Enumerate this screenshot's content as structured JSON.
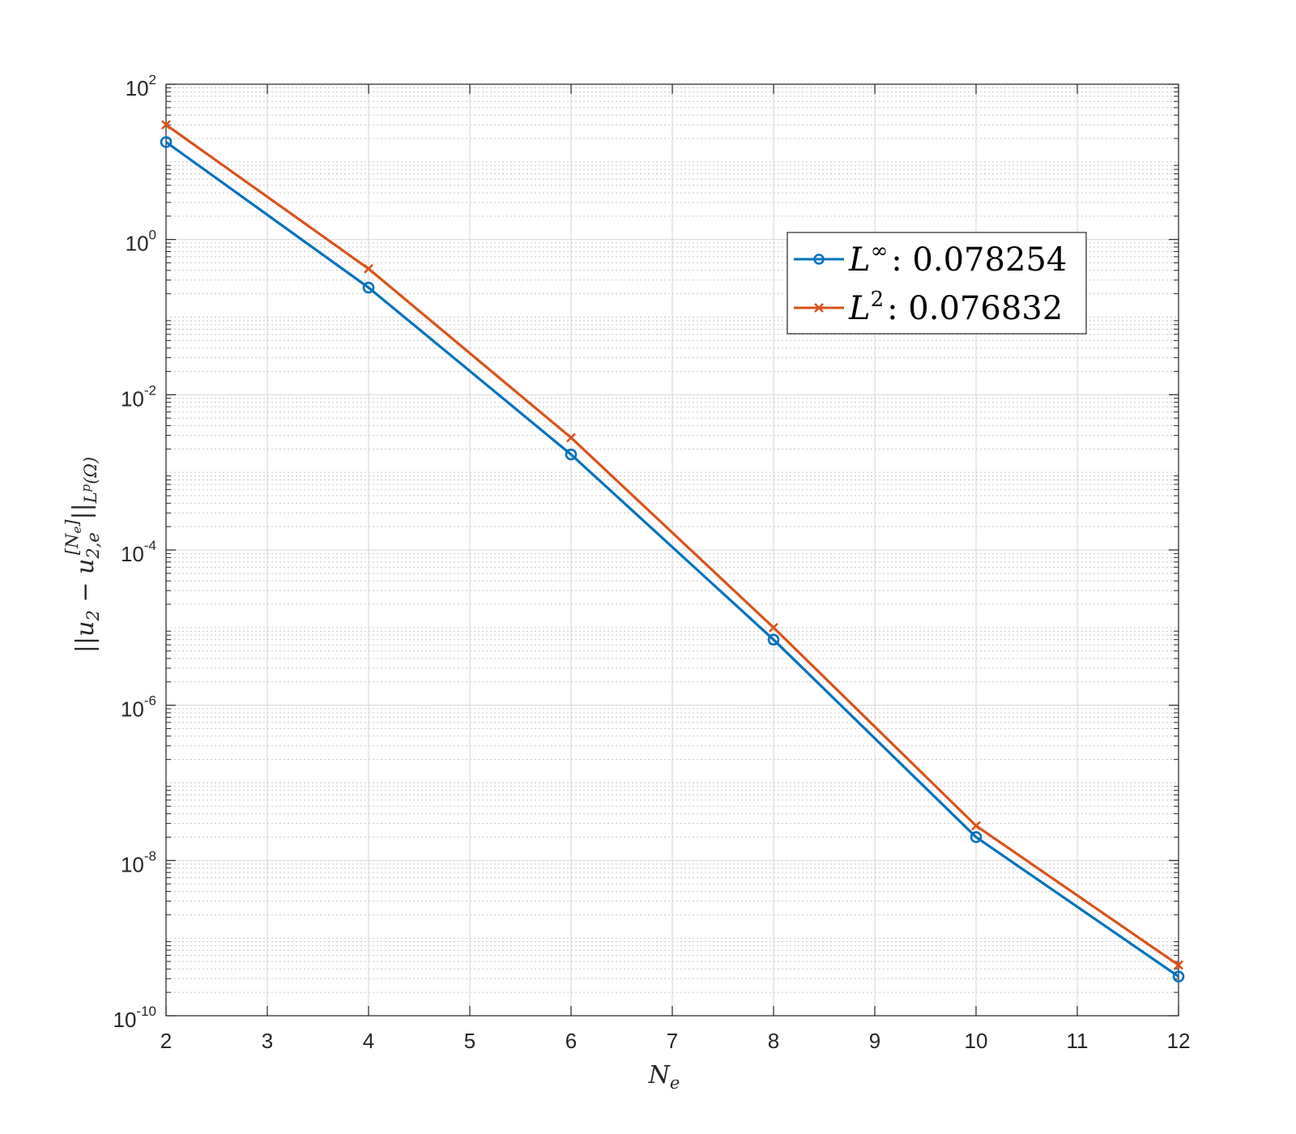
{
  "chart_data": {
    "type": "line",
    "x": [
      2,
      4,
      6,
      8,
      10,
      12
    ],
    "series": [
      {
        "name": "L^∞: 0.078254",
        "name_parts": {
          "base": "L",
          "sup": "∞",
          "value": ": 0.078254"
        },
        "color": "#0072BD",
        "marker": "circle",
        "values": [
          18,
          0.24,
          0.0017,
          7e-06,
          2e-08,
          3.2e-10
        ]
      },
      {
        "name": "L^2: 0.076832",
        "name_parts": {
          "base": "L",
          "sup": "2",
          "value": ": 0.076832"
        },
        "color": "#D95319",
        "marker": "x",
        "values": [
          30,
          0.42,
          0.0028,
          1e-05,
          2.8e-08,
          4.5e-10
        ]
      }
    ],
    "xlim": [
      2,
      12
    ],
    "ylim": [
      1e-10,
      100
    ],
    "yscale": "log",
    "x_ticks": [
      "2",
      "3",
      "4",
      "5",
      "6",
      "7",
      "8",
      "9",
      "10",
      "11",
      "12"
    ],
    "y_ticks": [
      {
        "base": "10",
        "exp": "2"
      },
      {
        "base": "10",
        "exp": "0"
      },
      {
        "base": "10",
        "exp": "-2"
      },
      {
        "base": "10",
        "exp": "-4"
      },
      {
        "base": "10",
        "exp": "-6"
      },
      {
        "base": "10",
        "exp": "-8"
      },
      {
        "base": "10",
        "exp": "-10"
      }
    ],
    "xlabel": {
      "base": "N",
      "sub": "e"
    },
    "ylabel": "||u₂ − u₂,ₑ^[Nₑ]||_Lᵖ(Ω)",
    "ylabel_parts": {
      "left": "||u",
      "sub1": "2",
      "minus": " − u",
      "sub2": "2,e",
      "sup2": "[N",
      "sup2_sub": "e",
      "sup2_end": "]",
      "bars": "||",
      "norm_sub": "L",
      "norm_sup": "p",
      "norm_end": "(Ω)"
    },
    "grid": true,
    "minor_grid": true,
    "legend_position": "upper-right-inside"
  }
}
